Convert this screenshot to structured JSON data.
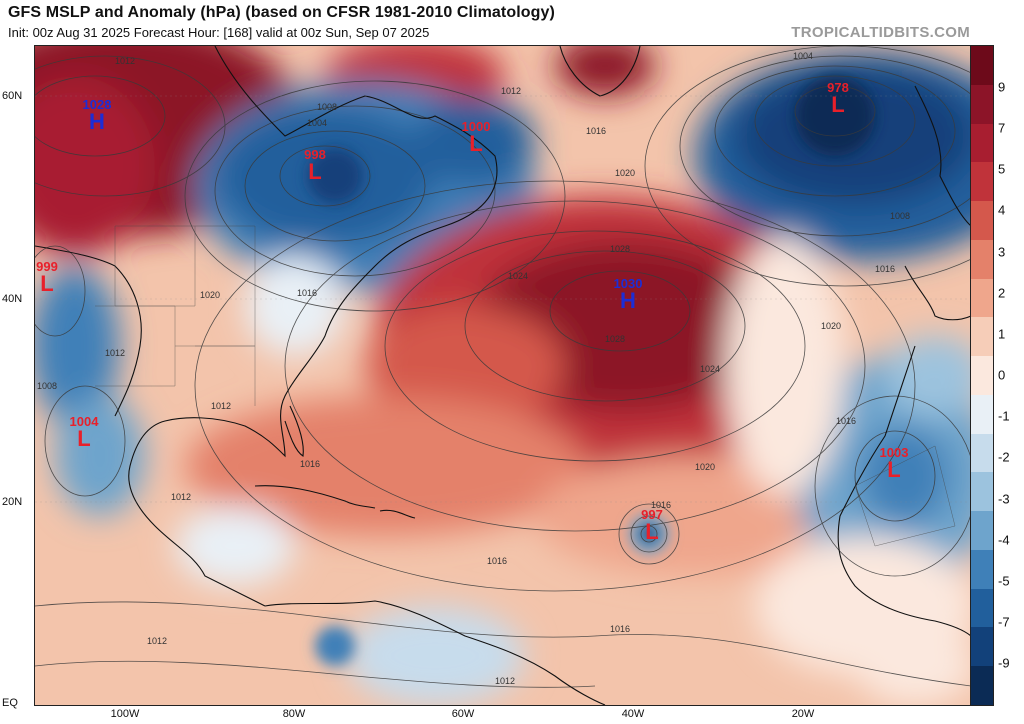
{
  "header": {
    "title": "GFS MSLP and Anomaly (hPa) (based on CFSR 1981-2010 Climatology)",
    "subtitle": "Init: 00z Aug 31 2025   Forecast Hour: [168]   valid at 00z Sun, Sep 07 2025",
    "brand": "TROPICALTIDBITS.COM"
  },
  "axes": {
    "lat_labels": [
      "60N",
      "40N",
      "20N",
      "EQ"
    ],
    "lon_labels": [
      "100W",
      "80W",
      "60W",
      "40W",
      "20W"
    ]
  },
  "colorbar": {
    "labels": [
      "9",
      "7",
      "5",
      "4",
      "3",
      "2",
      "1",
      "0",
      "-1",
      "-2",
      "-3",
      "-4",
      "-5",
      "-7",
      "-9"
    ],
    "colors": [
      "#6d0a1a",
      "#8c1428",
      "#a81e30",
      "#c0333a",
      "#d4584c",
      "#e4816a",
      "#efa68c",
      "#f6cdb8",
      "#fbe8de",
      "#e9f0f6",
      "#c7dcec",
      "#9cc3de",
      "#6ea4cc",
      "#3f80b8",
      "#215f9c",
      "#12417a",
      "#0b2b55"
    ]
  },
  "systems": [
    {
      "type": "H",
      "pressure": "1028"
    },
    {
      "type": "L",
      "pressure": "998"
    },
    {
      "type": "L",
      "pressure": "1000"
    },
    {
      "type": "L",
      "pressure": "978"
    },
    {
      "type": "L",
      "pressure": "999"
    },
    {
      "type": "H",
      "pressure": "1030"
    },
    {
      "type": "L",
      "pressure": "1004"
    },
    {
      "type": "L",
      "pressure": "997"
    },
    {
      "type": "L",
      "pressure": "1003"
    }
  ],
  "isobar_labels": [
    "1012",
    "1008",
    "1004",
    "1016",
    "1020",
    "1024",
    "1028",
    "1012",
    "1016",
    "1020",
    "1024",
    "1028",
    "1016",
    "1020",
    "1016",
    "1012",
    "1012",
    "1016",
    "1008",
    "1012",
    "1016",
    "1004",
    "1008",
    "1016",
    "1020",
    "1012",
    "1016",
    "1012"
  ]
}
